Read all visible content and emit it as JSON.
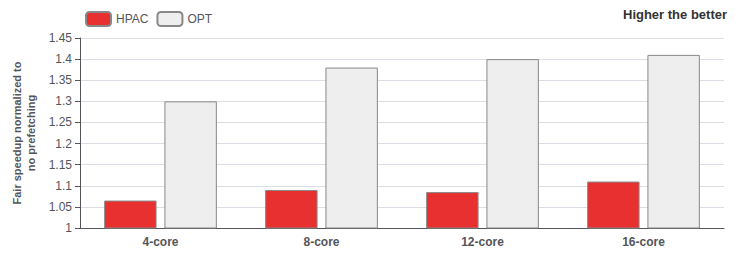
{
  "chart_data": {
    "type": "bar",
    "categories": [
      "4-core",
      "8-core",
      "12-core",
      "16-core"
    ],
    "series": [
      {
        "name": "HPAC",
        "color": "#e83030",
        "values": [
          1.065,
          1.09,
          1.085,
          1.11
        ]
      },
      {
        "name": "OPT",
        "color": "#eeeeee",
        "values": [
          1.3,
          1.38,
          1.4,
          1.41
        ]
      }
    ],
    "ylabel": "Fair speedup normalized to\nno prefetching",
    "annotation": "Higher the better",
    "ylim": [
      1.0,
      1.45
    ],
    "yticks": [
      1.0,
      1.05,
      1.1,
      1.15,
      1.2,
      1.25,
      1.3,
      1.35,
      1.4,
      1.45
    ],
    "grid": true,
    "legend": "upper left"
  }
}
